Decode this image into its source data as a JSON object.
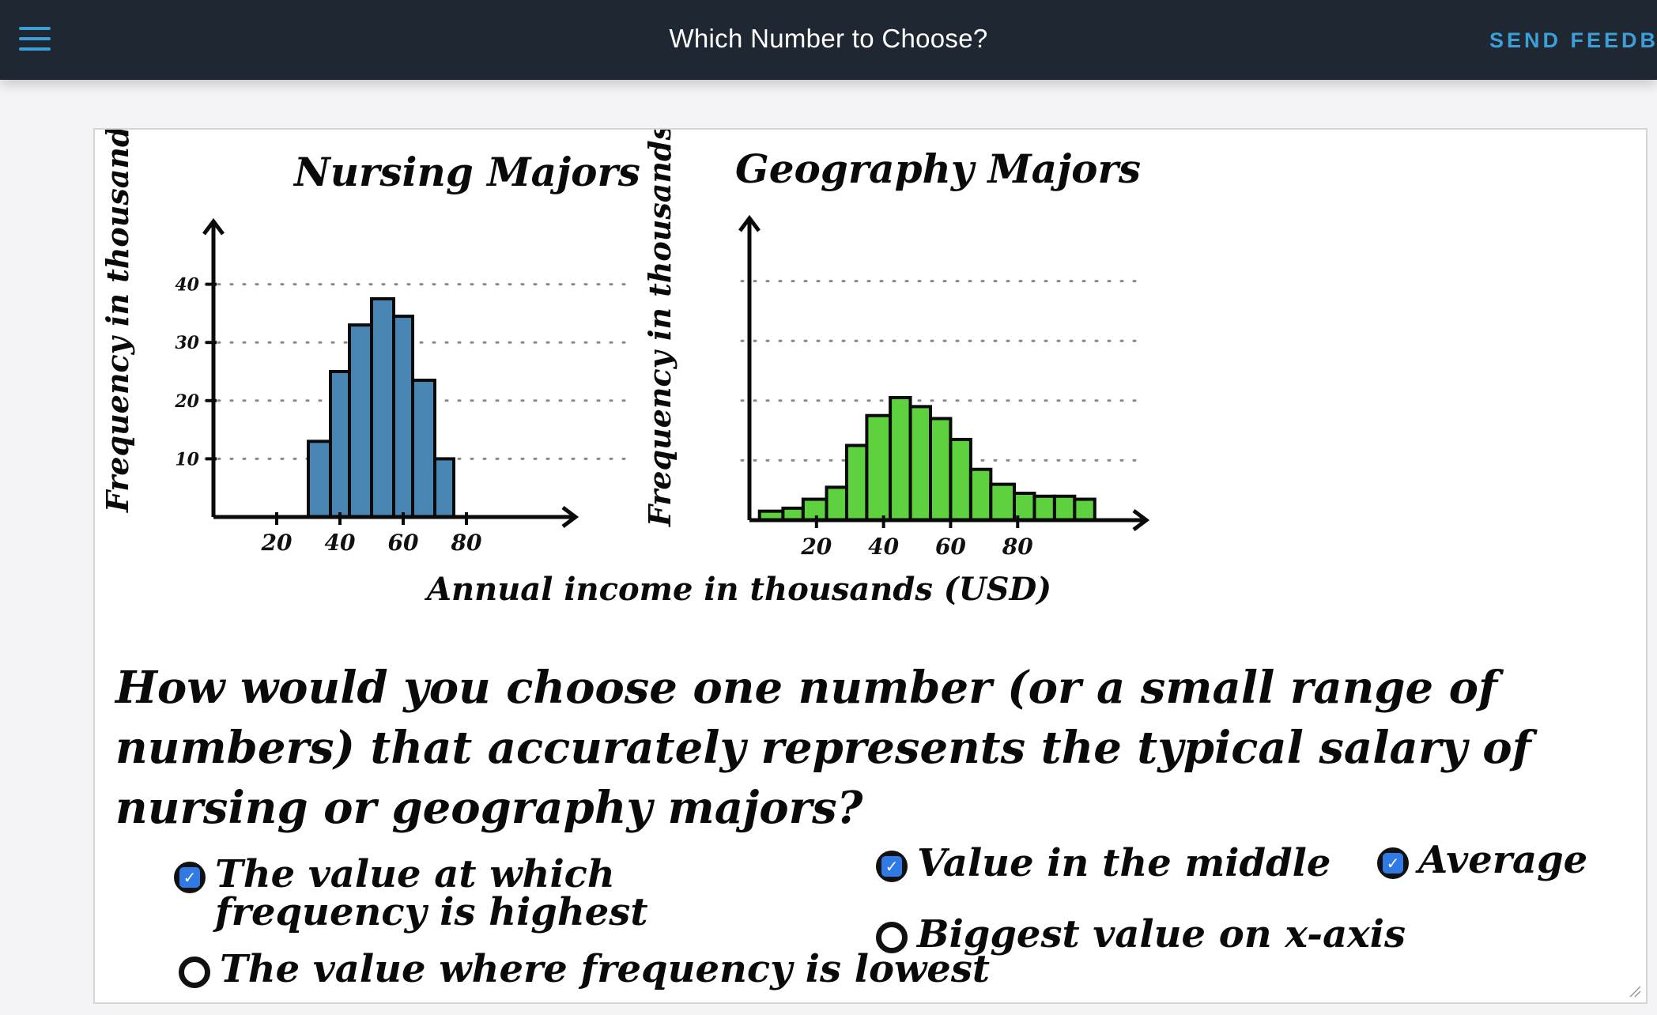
{
  "header": {
    "title": "Which Number to Choose?",
    "feedback_label": "SEND FEEDBACK"
  },
  "worksheet": {
    "xlabel_shared": "Annual income in thousands (USD)",
    "question": "How would you choose one number (or a small range of numbers) that accurately represents the typical salary of nursing or geography majors?",
    "options": [
      {
        "label": "The value at which frequency is highest",
        "checked": true
      },
      {
        "label": "Value in the middle",
        "checked": true
      },
      {
        "label": "Average",
        "checked": true
      },
      {
        "label": "The value where frequency is lowest",
        "checked": false
      },
      {
        "label": "Biggest value on x-axis",
        "checked": false
      }
    ]
  },
  "chart_data": [
    {
      "type": "bar",
      "title": "Nursing Majors",
      "ylabel": "Frequency in thousands",
      "xlabel": "Annual income in thousands (USD)",
      "color": "#4a86b4",
      "xticks": [
        "20",
        "40",
        "60",
        "80"
      ],
      "yticks": [
        "10",
        "20",
        "30",
        "40"
      ],
      "grid": "dotted",
      "bins": [
        {
          "start": 30,
          "end": 37,
          "value": 13
        },
        {
          "start": 37,
          "end": 43,
          "value": 25
        },
        {
          "start": 43,
          "end": 50,
          "value": 33
        },
        {
          "start": 50,
          "end": 57,
          "value": 37.5
        },
        {
          "start": 57,
          "end": 63,
          "value": 34.5
        },
        {
          "start": 63,
          "end": 70,
          "value": 23.5
        },
        {
          "start": 70,
          "end": 76,
          "value": 10
        }
      ],
      "xlim": [
        0,
        95
      ],
      "ylim": [
        0,
        50
      ]
    },
    {
      "type": "bar",
      "title": "Geography Majors",
      "ylabel": "Frequency in thousands",
      "xlabel": "Annual income in thousands (USD)",
      "color": "#5ed13e",
      "xticks": [
        "20",
        "40",
        "60",
        "80"
      ],
      "yticks": [],
      "grid": "dotted",
      "bins": [
        {
          "start": 3,
          "end": 10,
          "value": 1.5
        },
        {
          "start": 10,
          "end": 16,
          "value": 2
        },
        {
          "start": 16,
          "end": 23,
          "value": 3.5
        },
        {
          "start": 23,
          "end": 29,
          "value": 5.5
        },
        {
          "start": 29,
          "end": 35,
          "value": 12.5
        },
        {
          "start": 35,
          "end": 42,
          "value": 17.5
        },
        {
          "start": 42,
          "end": 48,
          "value": 20.5
        },
        {
          "start": 48,
          "end": 54,
          "value": 19
        },
        {
          "start": 54,
          "end": 60,
          "value": 17
        },
        {
          "start": 60,
          "end": 66,
          "value": 13.5
        },
        {
          "start": 66,
          "end": 72,
          "value": 8.5
        },
        {
          "start": 72,
          "end": 79,
          "value": 6
        },
        {
          "start": 79,
          "end": 85,
          "value": 4.5
        },
        {
          "start": 85,
          "end": 91,
          "value": 4
        },
        {
          "start": 91,
          "end": 97,
          "value": 4
        },
        {
          "start": 97,
          "end": 103,
          "value": 3.5
        }
      ],
      "xlim": [
        0,
        108
      ],
      "ylim": [
        0,
        50
      ]
    }
  ]
}
